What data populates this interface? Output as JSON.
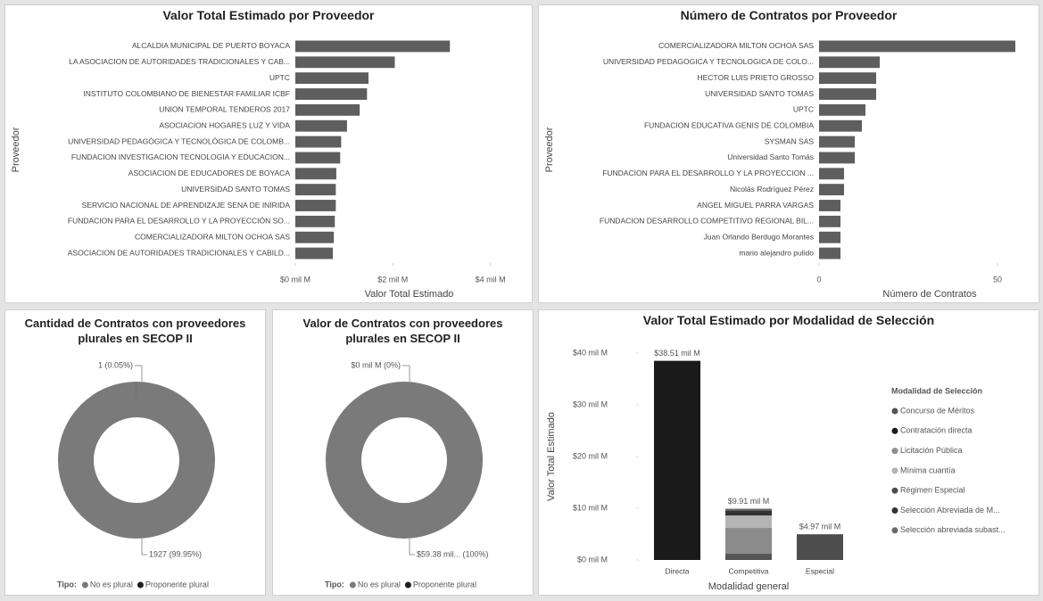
{
  "chart_data": [
    {
      "type": "bar",
      "orientation": "horizontal",
      "title": "Valor Total Estimado por Proveedor",
      "y_label": "Proveedor",
      "x_label": "Valor Total Estimado",
      "categories": [
        "ALCALDIA MUNICIPAL DE PUERTO BOYACA",
        "LA ASOCIACION DE AUTORIDADES TRADICIONALES Y CAB...",
        "UPTC",
        "INSTITUTO COLOMBIANO DE BIENESTAR FAMILIAR ICBF",
        "UNION TEMPORAL TENDEROS 2017",
        "ASOCIACION HOGARES LUZ Y VIDA",
        "UNIVERSIDAD PEDAGÓGICA Y TECNOLÓGICA DE COLOMB...",
        "FUNDACION INVESTIGACION TECNOLOGIA Y EDUCACION...",
        "ASOCIACION DE EDUCADORES DE BOYACA",
        "UNIVERSIDAD SANTO TOMAS",
        "SERVICIO NACIONAL DE APRENDIZAJE SENA DE INIRIDA",
        "FUNDACION PARA EL DESARROLLO Y LA PROYECCIÓN SO...",
        "COMERCIALIZADORA MILTON OCHOA SAS",
        "ASOCIACION DE AUTORIDADES TRADICIONALES Y CABILD..."
      ],
      "values": [
        3.17,
        2.04,
        1.5,
        1.47,
        1.32,
        1.06,
        0.94,
        0.92,
        0.84,
        0.83,
        0.83,
        0.81,
        0.79,
        0.77
      ],
      "color": "#5e5e5e",
      "xlim": [
        0,
        4.3
      ],
      "xticks": [
        {
          "value": 0,
          "label": "$0 mil M"
        },
        {
          "value": 2,
          "label": "$2 mil M"
        },
        {
          "value": 4,
          "label": "$4 mil M"
        }
      ]
    },
    {
      "type": "bar",
      "orientation": "horizontal",
      "title": "Número de Contratos por Proveedor",
      "y_label": "Proveedor",
      "x_label": "Número de Contratos",
      "categories": [
        "COMERCIALIZADORA MILTON OCHOA SAS",
        "UNIVERSIDAD PEDAGOGICA Y TECNOLOGICA DE COLO...",
        "HECTOR LUIS PRIETO GROSSO",
        "UNIVERSIDAD SANTO TOMAS",
        "UPTC",
        "FUNDACION EDUCATIVA GENIS DE COLOMBIA",
        "SYSMAN SAS",
        "Universidad Santo Tomás",
        "FUNDACION PARA EL DESARROLLO Y LA PROYECCION ...",
        "Nicolás Rodríguez Pérez",
        "ANGEL MIGUEL PARRA VARGAS",
        "FUNDACION DESARROLLO COMPETITIVO REGIONAL BIL...",
        "Juan Orlando Berdugo Morantes",
        "mario alejandro pulido"
      ],
      "values": [
        55,
        17,
        16,
        16,
        13,
        12,
        10,
        10,
        7,
        7,
        6,
        6,
        6,
        6
      ],
      "color": "#5e5e5e",
      "xlim": [
        0,
        57
      ],
      "xticks": [
        0,
        50
      ]
    },
    {
      "type": "pie",
      "donut": true,
      "title": "Cantidad de Contratos con proveedores plurales en SECOP II",
      "categories": [
        "No es plural",
        "Proponente plural"
      ],
      "values": [
        1927,
        1
      ],
      "value_labels": [
        "1927 (99.95%)",
        "1 (0.05%)"
      ],
      "colors": [
        "#7a7a7a",
        "#1e1e1e"
      ],
      "legend_title": "Tipo:"
    },
    {
      "type": "pie",
      "donut": true,
      "title": "Valor de Contratos con proveedores plurales en SECOP II",
      "categories": [
        "No es plural",
        "Proponente plural"
      ],
      "values": [
        59.38,
        0
      ],
      "value_labels": [
        "$59.38 mil... (100%)",
        "$0 mil M (0%)"
      ],
      "colors": [
        "#7a7a7a",
        "#1e1e1e"
      ],
      "legend_title": "Tipo:"
    },
    {
      "type": "bar",
      "stacked": true,
      "title": "Valor Total Estimado por Modalidad de Selección",
      "y_label": "Valor Total Estimado",
      "x_label": "Modalidad general",
      "categories": [
        "Directa",
        "Competitiva",
        "Especial"
      ],
      "total_labels": [
        "$38.51 mil M",
        "$9.91 mil M",
        "$4.97 mil M"
      ],
      "legend_title": "Modalidad de Selección",
      "series": [
        {
          "name": "Concurso de Méritos",
          "color": "#555555",
          "values": [
            0,
            1.2,
            0
          ]
        },
        {
          "name": "Contratación directa",
          "color": "#1a1a1a",
          "values": [
            38.51,
            0,
            0
          ]
        },
        {
          "name": "Licitación Pública",
          "color": "#8c8c8c",
          "values": [
            0,
            5.0,
            0
          ]
        },
        {
          "name": "Mínima cuantía",
          "color": "#b4b4b4",
          "values": [
            0,
            2.4,
            0
          ]
        },
        {
          "name": "Régimen Especial",
          "color": "#4d4d4d",
          "values": [
            0,
            0,
            4.97
          ]
        },
        {
          "name": "Selección Abreviada de M...",
          "color": "#333333",
          "values": [
            0,
            1.0,
            0
          ]
        },
        {
          "name": "Selección abreviada subast...",
          "color": "#6a6a6a",
          "values": [
            0,
            0.31,
            0
          ]
        }
      ],
      "ylim": [
        0,
        40
      ],
      "yticks": [
        {
          "value": 0,
          "label": "$0 mil M"
        },
        {
          "value": 10,
          "label": "$10 mil M"
        },
        {
          "value": 20,
          "label": "$20 mil M"
        },
        {
          "value": 30,
          "label": "$30 mil M"
        },
        {
          "value": 40,
          "label": "$40 mil M"
        }
      ]
    }
  ]
}
